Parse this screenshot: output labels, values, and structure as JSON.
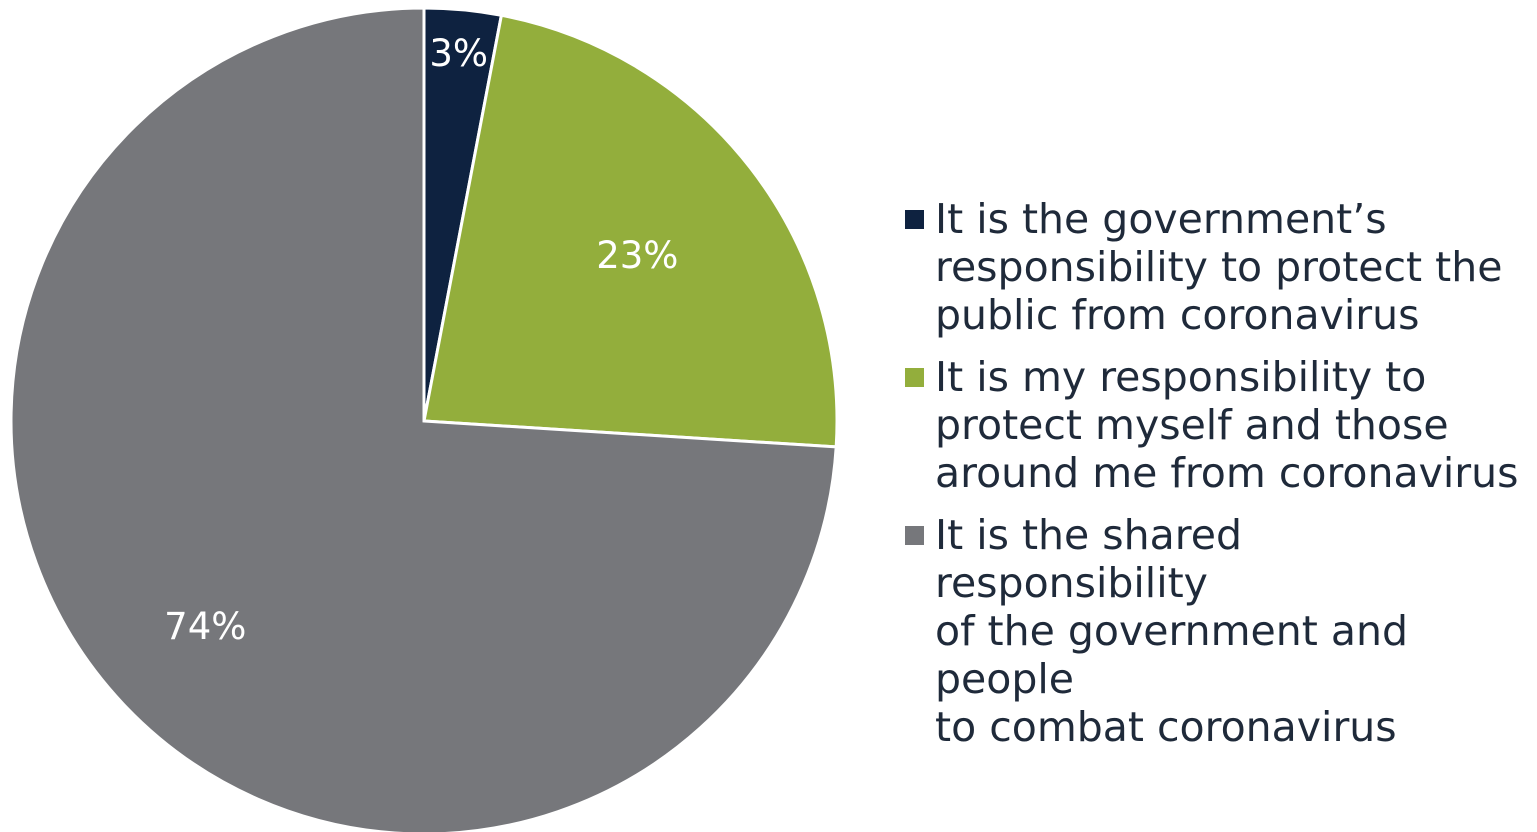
{
  "chart_data": {
    "type": "pie",
    "title": "",
    "start_angle_deg": 0,
    "direction": "clockwise",
    "slices": [
      {
        "label": "It is the government’s responsibility to protect the public from coronavirus",
        "display": "It is the government’s\nresponsibility to protect the\npublic from coronavirus",
        "value": 3,
        "data_label": "3%",
        "color": "#0e2240",
        "label_color": "#ffffff"
      },
      {
        "label": "It is my responsibility to protect myself and those around me from coronavirus",
        "display": "It is my responsibility to\nprotect myself and those\naround me from coronavirus",
        "value": 23,
        "data_label": "23%",
        "color": "#93ae3c",
        "label_color": "#ffffff"
      },
      {
        "label": "It is the shared responsibility of the government and people to combat coronavirus",
        "display": "It is the shared responsibility\nof the government and people\nto combat coronavirus",
        "value": 74,
        "data_label": "74%",
        "color": "#76777b",
        "label_color": "#ffffff"
      }
    ],
    "legend_position": "right",
    "slice_border_color": "#ffffff"
  }
}
